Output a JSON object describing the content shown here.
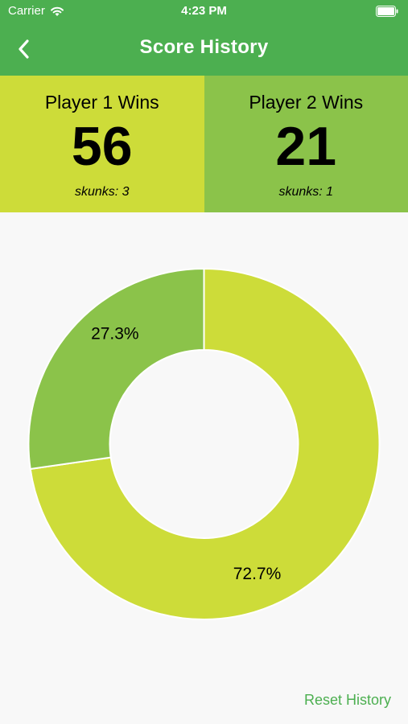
{
  "status_bar": {
    "carrier": "Carrier",
    "time": "4:23 PM"
  },
  "nav": {
    "title": "Score History",
    "back_icon": "chevron-left-icon"
  },
  "players": [
    {
      "label": "Player 1 Wins",
      "wins": "56",
      "skunks": "skunks: 3",
      "color": "#cddc39"
    },
    {
      "label": "Player 2 Wins",
      "wins": "21",
      "skunks": "skunks: 1",
      "color": "#8bc34a"
    }
  ],
  "chart_data": {
    "type": "pie",
    "donut": true,
    "categories": [
      "Player 1 Wins",
      "Player 2 Wins"
    ],
    "values": [
      56,
      21
    ],
    "percent_labels": [
      "72.7%",
      "27.3%"
    ],
    "colors": [
      "#cddc39",
      "#8bc34a"
    ]
  },
  "footer": {
    "reset_label": "Reset History"
  },
  "colors": {
    "primary": "#4caf50",
    "background": "#f8f8f8"
  }
}
